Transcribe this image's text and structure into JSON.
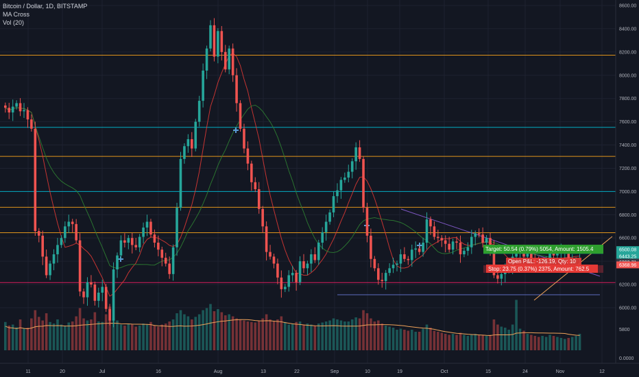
{
  "legend": {
    "symbol": "Bitcoin / Dollar, 1D, BITSTAMP",
    "indicator1": "MA Cross",
    "indicator2": "Vol (20)"
  },
  "colors": {
    "background": "#131722",
    "up": "#26a69a",
    "down": "#ef5350",
    "grid": "#1e2230",
    "axis_text": "#b2b5be"
  },
  "chart_data": {
    "type": "candlestick",
    "title": "Bitcoin / Dollar, 1D, BITSTAMP",
    "ylim": [
      5500,
      8700
    ],
    "y_ticks": [
      6000,
      6200,
      6400,
      6600,
      6800,
      7000,
      7200,
      7400,
      7600,
      7800,
      8000,
      8200,
      8400,
      8600
    ],
    "y_tick_labels": [
      "6000.00",
      "6200.00",
      "6400.00",
      "6600.00",
      "6800.00",
      "7000.00",
      "7200.00",
      "7400.00",
      "7600.00",
      "7800.00",
      "8000.00",
      "8200.00",
      "8400.00",
      "8600.00"
    ],
    "volume_axis_labels": [
      "5800",
      "0.0000"
    ],
    "x_labels": [
      {
        "label": "11",
        "x": 41
      },
      {
        "label": "20",
        "x": 91
      },
      {
        "label": "Jul",
        "x": 149
      },
      {
        "label": "16",
        "x": 231
      },
      {
        "label": "Aug",
        "x": 318
      },
      {
        "label": "13",
        "x": 384
      },
      {
        "label": "22",
        "x": 433
      },
      {
        "label": "Sep",
        "x": 488
      },
      {
        "label": "10",
        "x": 536
      },
      {
        "label": "19",
        "x": 583
      },
      {
        "label": "Oct",
        "x": 648
      },
      {
        "label": "15",
        "x": 712
      },
      {
        "label": "24",
        "x": 766
      },
      {
        "label": "Nov",
        "x": 817
      },
      {
        "label": "12",
        "x": 878
      }
    ],
    "closes": [
      7720,
      7680,
      7730,
      7760,
      7690,
      7700,
      7620,
      7540,
      6660,
      6620,
      6440,
      6280,
      6380,
      6460,
      6540,
      6600,
      6700,
      6740,
      6720,
      6580,
      6140,
      6090,
      6220,
      6200,
      6060,
      6130,
      6180,
      5990,
      5890,
      6330,
      6450,
      6580,
      6560,
      6600,
      6540,
      6520,
      6610,
      6690,
      6740,
      6630,
      6560,
      6500,
      6430,
      6380,
      6290,
      6520,
      6860,
      7280,
      7390,
      7450,
      7370,
      7600,
      7780,
      8040,
      8230,
      8430,
      8160,
      8380,
      8200,
      8050,
      8230,
      8000,
      7760,
      7540,
      7370,
      7240,
      7080,
      7020,
      6850,
      6700,
      6480,
      6440,
      6380,
      6260,
      6160,
      6180,
      6280,
      6300,
      6220,
      6400,
      6340,
      6380,
      6460,
      6410,
      6560,
      6650,
      6740,
      6820,
      6960,
      7010,
      7100,
      7120,
      7170,
      7260,
      7380,
      7280,
      6860,
      6620,
      6420,
      6340,
      6240,
      6230,
      6300,
      6340,
      6370,
      6380,
      6460,
      6420,
      6410,
      6500,
      6510,
      6480,
      6560,
      6760,
      6700,
      6610,
      6600,
      6580,
      6550,
      6500,
      6570,
      6560,
      6460,
      6490,
      6520,
      6610,
      6640,
      6630,
      6560,
      6600,
      6520,
      6280,
      6250,
      6290,
      6320,
      6330,
      6440,
      6480,
      6500,
      6440,
      6470,
      6420,
      6380,
      6350,
      6360,
      6400,
      6470,
      6450,
      6480,
      6490,
      6500,
      6380,
      6400,
      6410,
      6420
    ],
    "volumes": [
      0.55,
      0.48,
      0.5,
      0.45,
      0.6,
      0.42,
      0.44,
      0.62,
      0.78,
      0.65,
      0.58,
      0.72,
      0.55,
      0.52,
      0.6,
      0.5,
      0.48,
      0.54,
      0.56,
      0.66,
      0.82,
      0.62,
      0.58,
      0.6,
      0.74,
      0.56,
      0.55,
      0.7,
      0.85,
      0.62,
      0.58,
      0.5,
      0.48,
      0.52,
      0.5,
      0.46,
      0.48,
      0.52,
      0.5,
      0.55,
      0.48,
      0.46,
      0.5,
      0.52,
      0.56,
      0.6,
      0.72,
      0.78,
      0.7,
      0.66,
      0.6,
      0.65,
      0.7,
      0.78,
      0.82,
      0.9,
      0.76,
      0.8,
      0.74,
      0.68,
      0.7,
      0.66,
      0.62,
      0.6,
      0.58,
      0.56,
      0.55,
      0.54,
      0.58,
      0.62,
      0.7,
      0.6,
      0.56,
      0.6,
      0.66,
      0.55,
      0.5,
      0.52,
      0.55,
      0.56,
      0.5,
      0.52,
      0.5,
      0.48,
      0.52,
      0.54,
      0.56,
      0.58,
      0.62,
      0.6,
      0.58,
      0.56,
      0.56,
      0.6,
      0.64,
      0.62,
      0.78,
      0.72,
      0.62,
      0.56,
      0.58,
      0.52,
      0.48,
      0.46,
      0.44,
      0.4,
      0.42,
      0.4,
      0.38,
      0.4,
      0.36,
      0.36,
      0.42,
      0.5,
      0.44,
      0.38,
      0.36,
      0.34,
      0.32,
      0.3,
      0.32,
      0.3,
      0.34,
      0.3,
      0.28,
      0.3,
      0.32,
      0.3,
      0.3,
      0.28,
      0.3,
      0.6,
      0.5,
      0.46,
      0.44,
      0.4,
      0.5,
      0.98,
      0.42,
      0.38,
      0.32,
      0.3,
      0.28,
      0.26,
      0.28,
      0.26,
      0.3,
      0.28,
      0.26,
      0.24,
      0.22,
      0.24,
      0.26,
      0.28,
      0.32
    ],
    "levels": [
      {
        "value": 8172.25,
        "label": "8172.25",
        "color": "#f7a21b"
      },
      {
        "value": 7552.23,
        "label": "7552.23",
        "color": "#00bcd4"
      },
      {
        "value": 7302.3,
        "label": "7302.30",
        "color": "#f7a21b"
      },
      {
        "value": 6999.88,
        "label": "6999.88",
        "color": "#00bcd4"
      },
      {
        "value": 6864.38,
        "label": "6864.38",
        "color": "#f7a21b"
      },
      {
        "value": 6645.42,
        "label": "6645.42",
        "color": "#f7a21b"
      },
      {
        "value": 6216.95,
        "label": "6216.95",
        "color": "#e91e63"
      }
    ],
    "price_tags": [
      {
        "value": 6500.08,
        "label": "6500.08",
        "color": "#26a69a"
      },
      {
        "value": 6443.25,
        "label": "6443.25",
        "color": "#26a69a"
      },
      {
        "value": 6392.71,
        "label": "6392.71",
        "color": "#363a45"
      },
      {
        "value": 6368.96,
        "label": "6368.96",
        "color": "#ef5350"
      }
    ],
    "position": {
      "target_text": "Target: 50.54 (0.79%) 5054, Amount: 1505.4",
      "open_text": "Open P&L: -126.19, Qty: 10",
      "stop_text": "Stop: 23.75 (0.37%) 2375, Amount: 762.5"
    }
  }
}
